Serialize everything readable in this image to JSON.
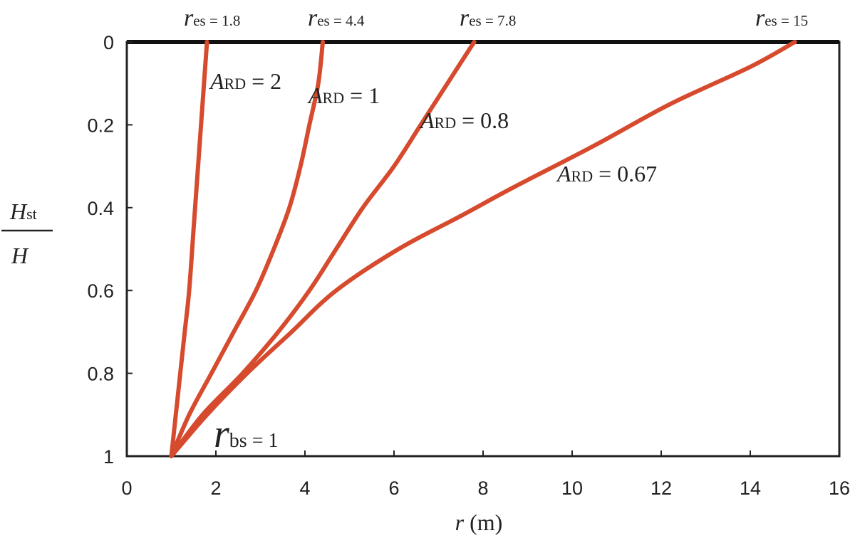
{
  "chart_data": {
    "type": "line",
    "xlabel": {
      "var": "r",
      "unit": "(m)"
    },
    "ylabel": {
      "main": "H",
      "sub": "st",
      "denominator": "H"
    },
    "xlim": [
      0,
      16
    ],
    "ylim": [
      0,
      1
    ],
    "y_inverted": true,
    "grid": false,
    "x_ticks": [
      "0",
      "2",
      "4",
      "6",
      "8",
      "10",
      "12",
      "14",
      "16"
    ],
    "y_ticks": [
      "0",
      "0.2",
      "0.4",
      "0.6",
      "0.8",
      "1"
    ],
    "line_color": "#d64a2e",
    "series": [
      {
        "ard": "2",
        "res": "1.8",
        "points": [
          [
            1.0,
            1.0
          ],
          [
            1.1,
            0.9
          ],
          [
            1.2,
            0.8
          ],
          [
            1.3,
            0.7
          ],
          [
            1.4,
            0.6
          ],
          [
            1.5,
            0.45
          ],
          [
            1.6,
            0.3
          ],
          [
            1.7,
            0.15
          ],
          [
            1.8,
            0.0
          ]
        ]
      },
      {
        "ard": "1",
        "res": "4.4",
        "points": [
          [
            1.0,
            1.0
          ],
          [
            1.4,
            0.9
          ],
          [
            1.9,
            0.8
          ],
          [
            2.4,
            0.7
          ],
          [
            2.9,
            0.6
          ],
          [
            3.3,
            0.5
          ],
          [
            3.65,
            0.4
          ],
          [
            3.9,
            0.3
          ],
          [
            4.1,
            0.2
          ],
          [
            4.3,
            0.1
          ],
          [
            4.4,
            0.0
          ]
        ]
      },
      {
        "ard": "0.8",
        "res": "7.8",
        "points": [
          [
            1.0,
            1.0
          ],
          [
            1.7,
            0.9
          ],
          [
            2.6,
            0.8
          ],
          [
            3.4,
            0.7
          ],
          [
            4.1,
            0.6
          ],
          [
            4.7,
            0.5
          ],
          [
            5.3,
            0.4
          ],
          [
            6.0,
            0.3
          ],
          [
            6.6,
            0.2
          ],
          [
            7.2,
            0.1
          ],
          [
            7.8,
            0.0
          ]
        ]
      },
      {
        "ard": "0.67",
        "res": "15",
        "points": [
          [
            1.0,
            1.0
          ],
          [
            1.8,
            0.9
          ],
          [
            2.7,
            0.8
          ],
          [
            3.7,
            0.7
          ],
          [
            4.7,
            0.6
          ],
          [
            6.1,
            0.5
          ],
          [
            7.5,
            0.42
          ],
          [
            8.7,
            0.35
          ],
          [
            10.5,
            0.25
          ],
          [
            12.2,
            0.15
          ],
          [
            14.0,
            0.06
          ],
          [
            15.0,
            0.0
          ]
        ]
      }
    ],
    "annotations": {
      "rbs": {
        "var": "r",
        "sub": "bs",
        "eq": "= 1"
      },
      "ard_var": "A",
      "ard_sub": "RD",
      "res_var": "r",
      "res_sub": "es"
    }
  }
}
